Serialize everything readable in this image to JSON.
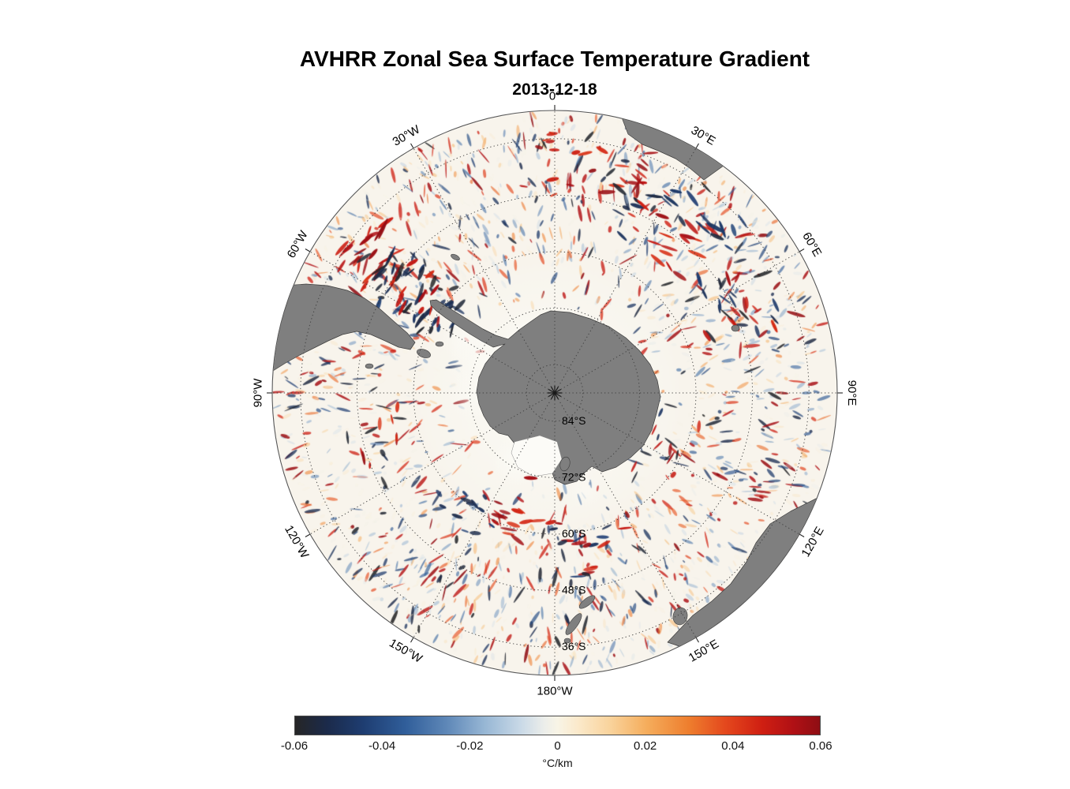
{
  "chart_data": {
    "type": "heatmap",
    "title": "AVHRR Zonal Sea Surface Temperature Gradient",
    "subtitle": "2013-12-18",
    "projection": "south polar stereographic",
    "units": "°C/km",
    "value_range": [
      -0.06,
      0.06
    ],
    "colorbar": {
      "label": "°C/km",
      "min": -0.06,
      "max": 0.06,
      "tick_labels": [
        "-0.06",
        "-0.04",
        "-0.02",
        "0",
        "0.02",
        "0.04",
        "0.06"
      ],
      "gradient_stops": [
        {
          "pos": 0.0,
          "color": "#262626"
        },
        {
          "pos": 0.06,
          "color": "#1b2a4a"
        },
        {
          "pos": 0.13,
          "color": "#1e3d71"
        },
        {
          "pos": 0.21,
          "color": "#305e9a"
        },
        {
          "pos": 0.29,
          "color": "#5f88b8"
        },
        {
          "pos": 0.36,
          "color": "#96b6d4"
        },
        {
          "pos": 0.43,
          "color": "#c9d9e7"
        },
        {
          "pos": 0.475,
          "color": "#eceeea"
        },
        {
          "pos": 0.5,
          "color": "#f8f4e6"
        },
        {
          "pos": 0.54,
          "color": "#fbe9ca"
        },
        {
          "pos": 0.6,
          "color": "#f9d39c"
        },
        {
          "pos": 0.67,
          "color": "#f5ad5c"
        },
        {
          "pos": 0.75,
          "color": "#ee7e2e"
        },
        {
          "pos": 0.82,
          "color": "#e4481d"
        },
        {
          "pos": 0.89,
          "color": "#cf1f12"
        },
        {
          "pos": 0.95,
          "color": "#b01015"
        },
        {
          "pos": 1.0,
          "color": "#8e0e14"
        }
      ]
    },
    "latitude_ring_labels": [
      {
        "label": "84°S",
        "radius_frac": 0.1
      },
      {
        "label": "72°S",
        "radius_frac": 0.3
      },
      {
        "label": "60°S",
        "radius_frac": 0.5
      },
      {
        "label": "48°S",
        "radius_frac": 0.7
      },
      {
        "label": "36°S",
        "radius_frac": 0.9
      }
    ],
    "meridian_labels": [
      {
        "angle": 0,
        "label": "0°"
      },
      {
        "angle": 30,
        "label": "30°E"
      },
      {
        "angle": 60,
        "label": "60°E"
      },
      {
        "angle": 90,
        "label": "90°E"
      },
      {
        "angle": 120,
        "label": "120°E"
      },
      {
        "angle": 150,
        "label": "150°E"
      },
      {
        "angle": 180,
        "label": "180°W"
      },
      {
        "angle": 210,
        "label": "150°W"
      },
      {
        "angle": 240,
        "label": "120°W"
      },
      {
        "angle": 270,
        "label": "90°W"
      },
      {
        "angle": 300,
        "label": "60°W"
      },
      {
        "angle": 330,
        "label": "30°W"
      }
    ],
    "colors": {
      "land": "#7f7f7f",
      "land_outline": "#3d3d3d",
      "ocean_base": "#f8f4ec",
      "ice": "#fcfbf7",
      "graticule": "#3c3c3c",
      "rim": "#555555"
    }
  }
}
